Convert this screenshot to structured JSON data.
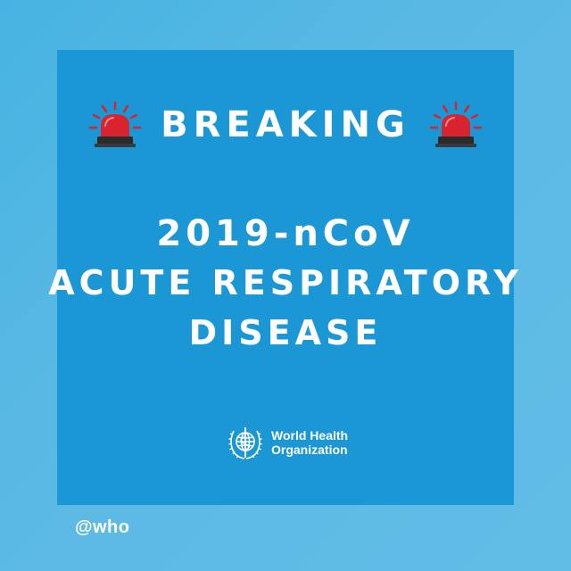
{
  "post": {
    "breaking": "BREAKING",
    "headline": [
      "2019-nCoV",
      "ACUTE RESPIRATORY",
      "DISEASE"
    ],
    "logo": {
      "text_line1": "World Health",
      "text_line2": "Organization",
      "icon": "who-emblem-icon"
    },
    "handle": "@who",
    "icons": {
      "left": "siren-icon",
      "right": "siren-icon"
    }
  },
  "colors": {
    "page_background": "#5ab9e4",
    "card_background": "#1a97d4",
    "siren_red": "#d9232e",
    "text": "#ffffff"
  }
}
